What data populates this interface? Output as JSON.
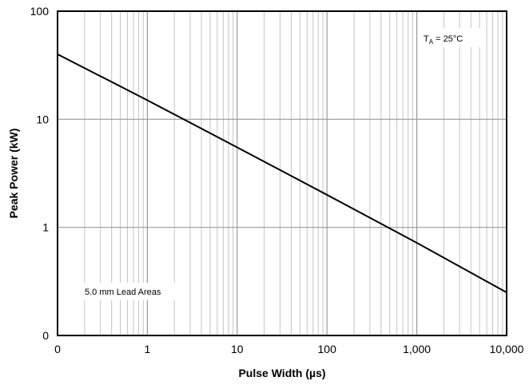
{
  "chart_data": {
    "type": "line",
    "title": "",
    "xlabel": "Pulse Width (µs)",
    "ylabel": "Peak Power (kW)",
    "x_scale": "log",
    "y_scale": "log",
    "xlim": [
      0.1,
      10000
    ],
    "ylim": [
      0.1,
      100
    ],
    "x_ticks": [
      {
        "value": 0.1,
        "label": "0"
      },
      {
        "value": 1,
        "label": "1"
      },
      {
        "value": 10,
        "label": "10"
      },
      {
        "value": 100,
        "label": "100"
      },
      {
        "value": 1000,
        "label": "1,000"
      },
      {
        "value": 10000,
        "label": "10,000"
      }
    ],
    "y_ticks": [
      {
        "value": 0.1,
        "label": "0"
      },
      {
        "value": 1,
        "label": "1"
      },
      {
        "value": 10,
        "label": "10"
      },
      {
        "value": 100,
        "label": "100"
      }
    ],
    "grid": true,
    "series": [
      {
        "x": [
          0.1,
          1,
          10,
          100,
          1000,
          10000
        ],
        "y": [
          40,
          15,
          5.5,
          2.0,
          0.72,
          0.25
        ]
      }
    ],
    "annotations": [
      {
        "id": "temp",
        "text_main": "T",
        "text_sub": "A",
        "text_rest": " = 25°C",
        "position": "top-right"
      },
      {
        "id": "lead",
        "text": "5.0 mm Lead Areas",
        "position": "bottom-left"
      }
    ]
  },
  "colors": {
    "line": "#000000",
    "grid_major": "#9a9a9a",
    "grid_minor": "#c4c4c4",
    "frame": "#000000",
    "background": "#ffffff"
  }
}
